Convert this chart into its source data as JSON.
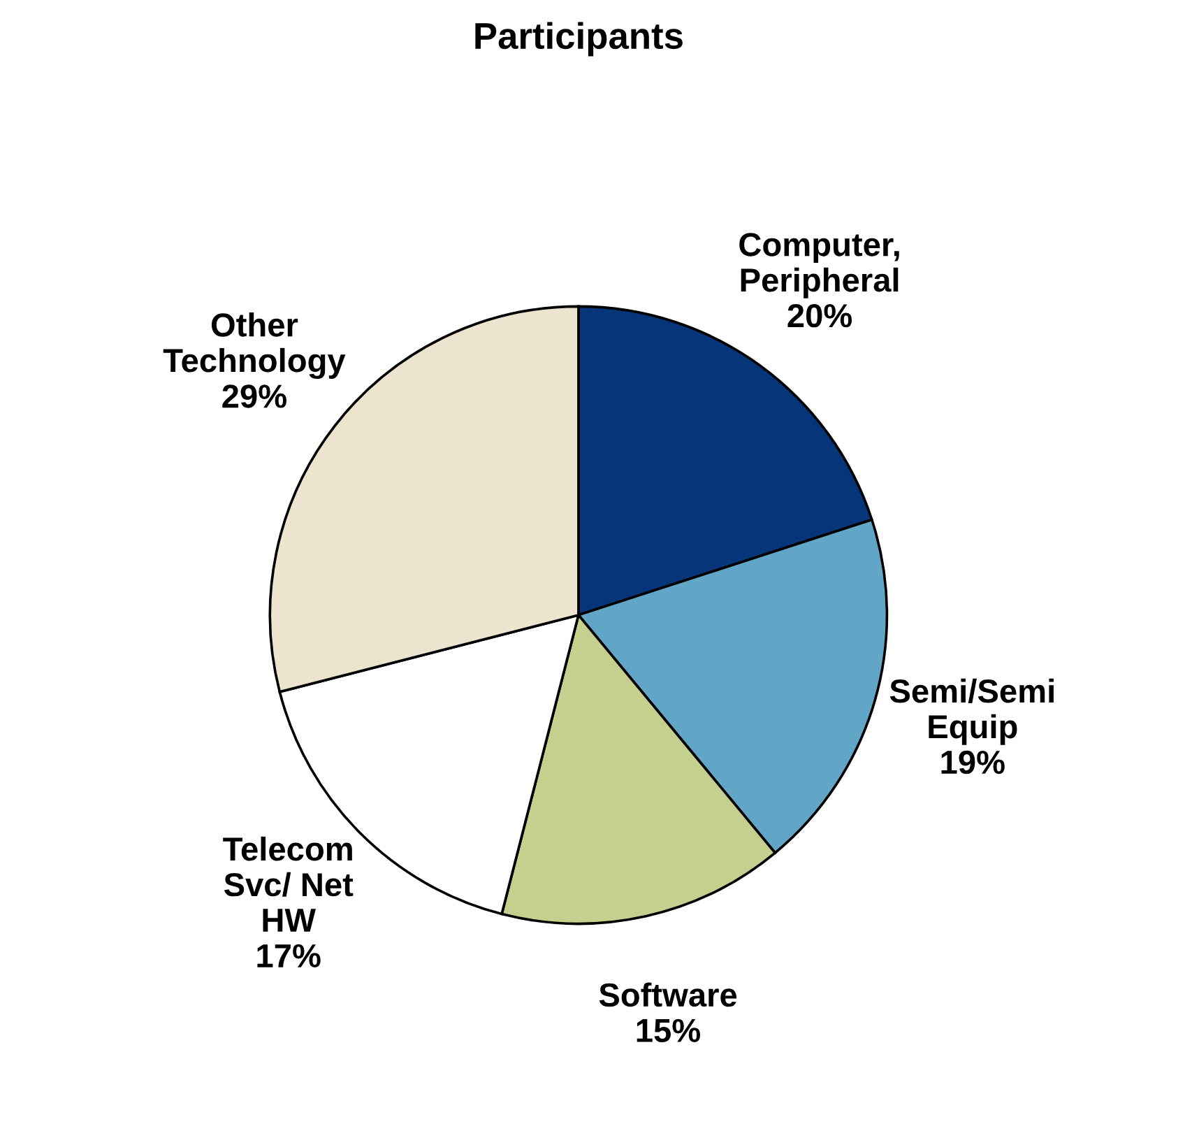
{
  "chart_data": {
    "type": "pie",
    "title": "Participants",
    "categories": [
      "Computer,\nPeripheral",
      "Semi/Semi\nEquip",
      "Software",
      "Telecom\nSvc/ Net\nHW",
      "Other\nTechnology"
    ],
    "values": [
      20,
      19,
      15,
      17,
      29
    ],
    "value_labels": [
      "20%",
      "19%",
      "15%",
      "17%",
      "29%"
    ],
    "colors": [
      "#06357a",
      "#62a6c7",
      "#c5d08f",
      "#ffffff",
      "#ede4cf"
    ],
    "legend": false
  }
}
